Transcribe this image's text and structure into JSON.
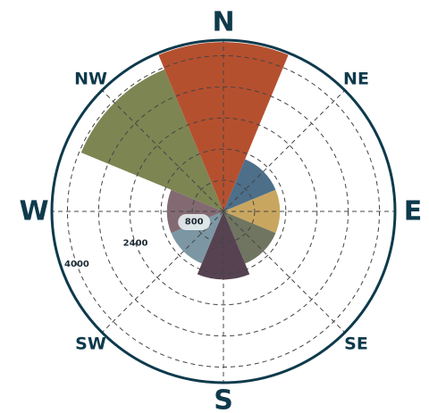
{
  "chart_data": {
    "type": "polar-bar",
    "title": "",
    "directions": [
      {
        "label": "N",
        "size": "large"
      },
      {
        "label": "NE",
        "size": "small"
      },
      {
        "label": "E",
        "size": "large"
      },
      {
        "label": "SE",
        "size": "small"
      },
      {
        "label": "S",
        "size": "large"
      },
      {
        "label": "SW",
        "size": "small"
      },
      {
        "label": "W",
        "size": "large"
      },
      {
        "label": "NW",
        "size": "small"
      }
    ],
    "radial_ticks": [
      {
        "value": 800,
        "label": "800",
        "boxed": true
      },
      {
        "value": 2400,
        "label": "2400",
        "boxed": false
      },
      {
        "value": 4000,
        "label": "4000",
        "boxed": false
      }
    ],
    "grid_rings": [
      800,
      1600,
      2400,
      3200,
      4000
    ],
    "rmax": 4400,
    "grid": true,
    "sectors": [
      {
        "direction": "N",
        "value": 4350,
        "color": "#b5502f"
      },
      {
        "direction": "NE",
        "value": 1450,
        "color": "#4d6f8a"
      },
      {
        "direction": "E",
        "value": 1450,
        "color": "#c9a660"
      },
      {
        "direction": "SE",
        "value": 1450,
        "color": "#6f7560"
      },
      {
        "direction": "S",
        "value": 1750,
        "color": "#574251"
      },
      {
        "direction": "SW",
        "value": 1450,
        "color": "#7c97a3"
      },
      {
        "direction": "W",
        "value": 1450,
        "color": "#836a72"
      },
      {
        "direction": "NW",
        "value": 3950,
        "color": "#7d8553"
      }
    ]
  }
}
